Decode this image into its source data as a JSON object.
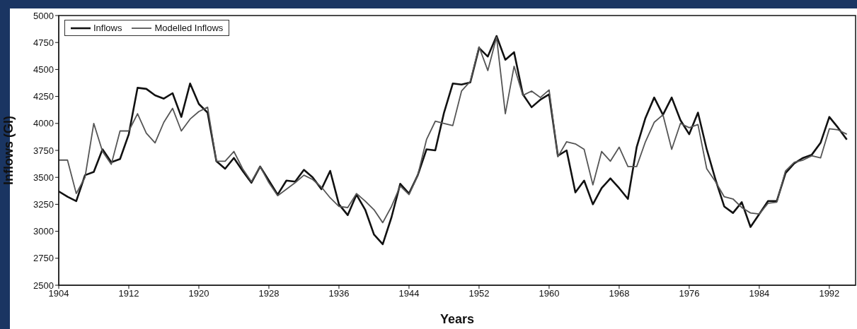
{
  "chart_data": {
    "type": "line",
    "xlabel": "Years",
    "ylabel": "Inflows (Gl)",
    "x": [
      1904,
      1905,
      1906,
      1907,
      1908,
      1909,
      1910,
      1911,
      1912,
      1913,
      1914,
      1915,
      1916,
      1917,
      1918,
      1919,
      1920,
      1921,
      1922,
      1923,
      1924,
      1925,
      1926,
      1927,
      1928,
      1929,
      1930,
      1931,
      1932,
      1933,
      1934,
      1935,
      1936,
      1937,
      1938,
      1939,
      1940,
      1941,
      1942,
      1943,
      1944,
      1945,
      1946,
      1947,
      1948,
      1949,
      1950,
      1951,
      1952,
      1953,
      1954,
      1955,
      1956,
      1957,
      1958,
      1959,
      1960,
      1961,
      1962,
      1963,
      1964,
      1965,
      1966,
      1967,
      1968,
      1969,
      1970,
      1971,
      1972,
      1973,
      1974,
      1975,
      1976,
      1977,
      1978,
      1979,
      1980,
      1981,
      1982,
      1983,
      1984,
      1985,
      1986,
      1987,
      1988,
      1989,
      1990,
      1991,
      1992,
      1993,
      1994
    ],
    "series": [
      {
        "name": "Inflows",
        "color": "#111111",
        "values": [
          3370,
          3320,
          3280,
          3520,
          3550,
          3760,
          3640,
          3670,
          3900,
          4330,
          4320,
          4260,
          4230,
          4280,
          4060,
          4370,
          4180,
          4100,
          3650,
          3580,
          3680,
          3560,
          3450,
          3600,
          3470,
          3340,
          3470,
          3460,
          3570,
          3500,
          3390,
          3560,
          3250,
          3150,
          3340,
          3200,
          2970,
          2880,
          3130,
          3440,
          3350,
          3520,
          3760,
          3750,
          4100,
          4370,
          4360,
          4380,
          4700,
          4620,
          4810,
          4590,
          4660,
          4270,
          4150,
          4220,
          4270,
          3700,
          3750,
          3360,
          3470,
          3250,
          3400,
          3490,
          3400,
          3300,
          3780,
          4050,
          4240,
          4080,
          4240,
          4030,
          3900,
          4100,
          3760,
          3480,
          3230,
          3170,
          3270,
          3040,
          3160,
          3280,
          3280,
          3540,
          3630,
          3680,
          3710,
          3820,
          4060,
          3960,
          3850
        ]
      },
      {
        "name": "Modelled Inflows",
        "color": "#555555",
        "values": [
          3660,
          3660,
          3350,
          3500,
          4000,
          3740,
          3620,
          3930,
          3930,
          4090,
          3910,
          3820,
          4010,
          4140,
          3930,
          4040,
          4110,
          4150,
          3650,
          3650,
          3740,
          3580,
          3460,
          3600,
          3450,
          3330,
          3390,
          3450,
          3520,
          3480,
          3410,
          3310,
          3230,
          3220,
          3350,
          3280,
          3200,
          3080,
          3230,
          3420,
          3340,
          3520,
          3850,
          4020,
          4000,
          3980,
          4300,
          4390,
          4710,
          4490,
          4800,
          4090,
          4530,
          4260,
          4300,
          4240,
          4310,
          3690,
          3830,
          3810,
          3760,
          3430,
          3740,
          3650,
          3780,
          3600,
          3600,
          3830,
          4010,
          4080,
          3760,
          4000,
          3960,
          3990,
          3580,
          3460,
          3320,
          3300,
          3220,
          3170,
          3160,
          3260,
          3270,
          3560,
          3640,
          3660,
          3700,
          3680,
          3950,
          3940,
          3900
        ]
      }
    ],
    "xlim": [
      1904,
      1995
    ],
    "xticks": [
      1904,
      1912,
      1920,
      1928,
      1936,
      1944,
      1952,
      1960,
      1968,
      1976,
      1984,
      1992
    ],
    "ylim": [
      2500,
      5000
    ],
    "yticks": [
      2500,
      2750,
      3000,
      3250,
      3500,
      3750,
      4000,
      4250,
      4500,
      4750,
      5000
    ],
    "grid": false,
    "legend": "top left",
    "marker": "none",
    "line_style": "solid"
  }
}
